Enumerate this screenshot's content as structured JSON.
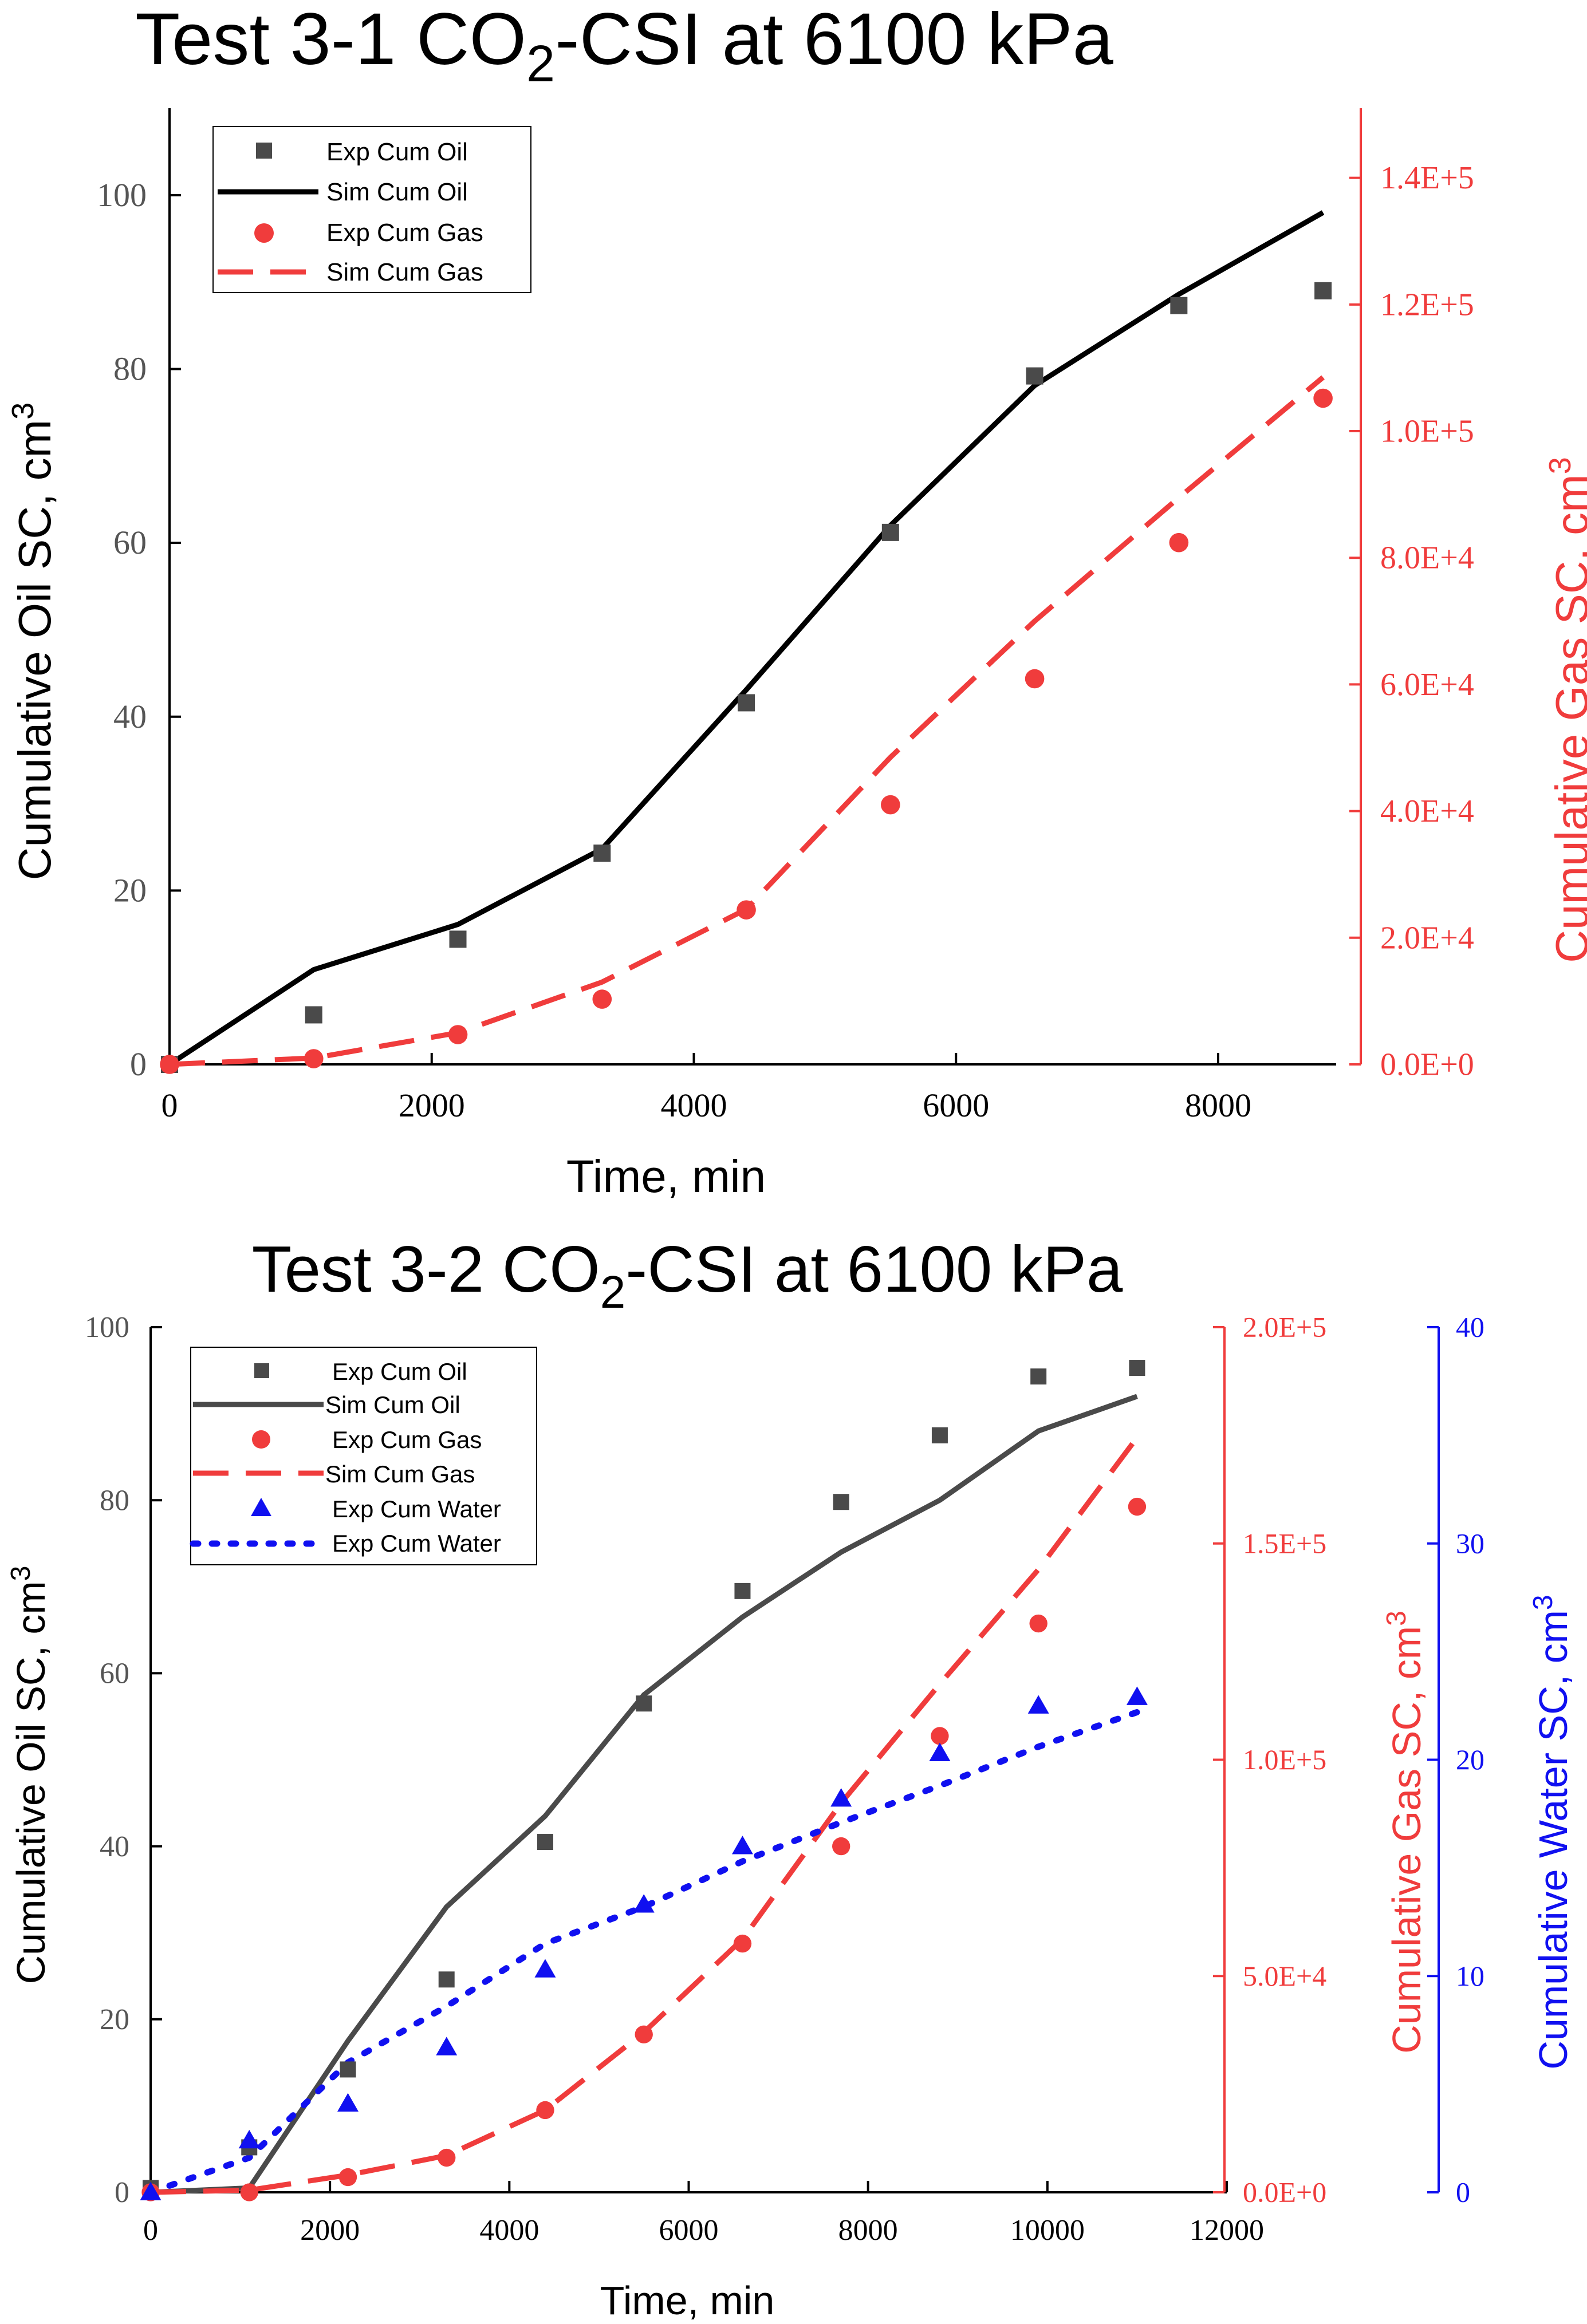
{
  "chart_data": [
    {
      "type": "line",
      "title_main": "Test 3-1 CO",
      "title_sub": "2",
      "title_rest": "-CSI at 6100 kPa",
      "xlabel": "Time, min",
      "ylabel_left": "Cumulative Oil SC, cm",
      "ylabel_left_sup": "3",
      "ylabel_right": "Cumulative Gas SC, cm",
      "ylabel_right_sup": "3",
      "xlim": [
        0,
        8900
      ],
      "ylim_left": [
        0,
        110
      ],
      "ylim_right": [
        0,
        151000
      ],
      "x_ticks": [
        0,
        2000,
        4000,
        6000,
        8000
      ],
      "x_tick_labels": [
        "0",
        "2000",
        "4000",
        "6000",
        "8000"
      ],
      "y_left_ticks": [
        0,
        20,
        40,
        60,
        80,
        100
      ],
      "y_left_tick_labels": [
        "0",
        "20",
        "40",
        "60",
        "80",
        "100"
      ],
      "y_right_ticks": [
        0,
        20000,
        40000,
        60000,
        80000,
        100000,
        120000,
        140000
      ],
      "y_right_tick_labels": [
        "0.0E+0",
        "2.0E+4",
        "4.0E+4",
        "6.0E+4",
        "8.0E+4",
        "1.0E+5",
        "1.2E+5",
        "1.4E+5"
      ],
      "legend_position": "top-left",
      "series": [
        {
          "name": "Exp Cum Oil",
          "axis": "left",
          "kind": "marker-square",
          "color": "#4a4a4a",
          "x": [
            0,
            1100,
            2200,
            3300,
            4400,
            5500,
            6600,
            7700,
            8800
          ],
          "y": [
            0,
            5.7,
            14.4,
            24.3,
            41.6,
            61.2,
            79.2,
            87.3,
            89
          ]
        },
        {
          "name": "Sim Cum Oil",
          "axis": "left",
          "kind": "line-solid",
          "color": "#000000",
          "x": [
            0,
            1100,
            2200,
            3300,
            4400,
            5500,
            6600,
            7700,
            8800
          ],
          "y": [
            0,
            10.9,
            16.1,
            24.8,
            43.1,
            62,
            78.1,
            88.6,
            98
          ]
        },
        {
          "name": "Exp Cum Gas",
          "axis": "right",
          "kind": "marker-circle",
          "color": "#f03c3c",
          "x": [
            0,
            1100,
            2200,
            3300,
            4400,
            5500,
            6600,
            7700,
            8800
          ],
          "y": [
            0,
            900,
            4700,
            10300,
            24400,
            41000,
            60900,
            82400,
            105200
          ]
        },
        {
          "name": "Sim Cum Gas",
          "axis": "right",
          "kind": "line-dash",
          "color": "#f03c3c",
          "x": [
            0,
            1100,
            2200,
            3300,
            4400,
            5500,
            6600,
            7700,
            8800
          ],
          "y": [
            0,
            1000,
            5000,
            13000,
            24500,
            48500,
            70000,
            89500,
            108500
          ]
        }
      ]
    },
    {
      "type": "line",
      "title_main": "Test 3-2 CO",
      "title_sub": "2",
      "title_rest": "-CSI at 6100 kPa",
      "xlabel": "Time, min",
      "ylabel_left": "Cumulative Oil SC, cm",
      "ylabel_left_sup": "3",
      "ylabel_right": "Cumulative Gas SC, cm",
      "ylabel_right_sup": "3",
      "ylabel_right2": "Cumulative Water SC, cm",
      "ylabel_right2_sup": "3",
      "xlim": [
        0,
        12000
      ],
      "ylim_left": [
        0,
        100
      ],
      "ylim_right": [
        0,
        200000
      ],
      "ylim_right2": [
        0,
        40
      ],
      "x_ticks": [
        0,
        2000,
        4000,
        6000,
        8000,
        10000,
        12000
      ],
      "x_tick_labels": [
        "0",
        "2000",
        "4000",
        "6000",
        "8000",
        "10000",
        "12000"
      ],
      "y_left_ticks": [
        0,
        20,
        40,
        60,
        80,
        100
      ],
      "y_left_tick_labels": [
        "0",
        "20",
        "40",
        "60",
        "80",
        "100"
      ],
      "y_right_ticks": [
        0,
        50000,
        100000,
        150000,
        200000
      ],
      "y_right_tick_labels": [
        "0.0E+0",
        "5.0E+4",
        "1.0E+5",
        "1.5E+5",
        "2.0E+5"
      ],
      "y_right2_ticks": [
        0,
        10,
        20,
        30,
        40
      ],
      "y_right2_tick_labels": [
        "0",
        "10",
        "20",
        "30",
        "40"
      ],
      "legend_position": "top-left",
      "series": [
        {
          "name": "Exp Cum Oil",
          "axis": "left",
          "kind": "marker-square",
          "color": "#4a4a4a",
          "x": [
            0,
            1100,
            2200,
            3300,
            4400,
            5500,
            6600,
            7700,
            8800,
            9900,
            11000
          ],
          "y": [
            0.5,
            5.2,
            14.2,
            24.6,
            40.5,
            56.5,
            69.5,
            79.8,
            87.5,
            94.3,
            95.3
          ]
        },
        {
          "name": "Sim Cum Oil",
          "axis": "left",
          "kind": "line-solid",
          "color": "#4a4a4a",
          "x": [
            0,
            1100,
            2200,
            3300,
            4400,
            5500,
            6600,
            7700,
            8800,
            9900,
            11000
          ],
          "y": [
            0,
            0.5,
            17.5,
            33,
            43.5,
            57.5,
            66.5,
            74,
            80,
            88,
            92
          ]
        },
        {
          "name": "Exp Cum Gas",
          "axis": "right",
          "kind": "marker-circle",
          "color": "#f03c3c",
          "x": [
            0,
            1100,
            2200,
            3300,
            4400,
            5500,
            6600,
            7700,
            8800,
            9900,
            11000
          ],
          "y": [
            0,
            0,
            3500,
            8000,
            19000,
            36500,
            57500,
            80000,
            105500,
            131500,
            158500
          ]
        },
        {
          "name": "Sim Cum Gas",
          "axis": "right",
          "kind": "line-dash",
          "color": "#f03c3c",
          "x": [
            0,
            1100,
            2200,
            3300,
            4400,
            5500,
            6600,
            7700,
            8800,
            9900,
            11000
          ],
          "y": [
            0,
            500,
            4000,
            8500,
            19000,
            37000,
            58500,
            90000,
            117500,
            144000,
            174500
          ]
        },
        {
          "name": "Exp Cum Water",
          "axis": "right2",
          "kind": "marker-triangle",
          "color": "#1010f0",
          "x": [
            0,
            1100,
            2200,
            3300,
            4400,
            5500,
            6600,
            7700,
            8800,
            9900,
            11000
          ],
          "y": [
            0,
            2.4,
            4.1,
            6.7,
            10.3,
            13.3,
            16,
            18.2,
            20.3,
            22.5,
            22.9
          ]
        },
        {
          "name": "Exp Cum Water",
          "axis": "right2",
          "kind": "line-dot",
          "color": "#1010f0",
          "x": [
            0,
            1100,
            2200,
            3300,
            4400,
            5500,
            6600,
            7700,
            8800,
            9900,
            11000
          ],
          "y": [
            0,
            1.6,
            6,
            8.6,
            11.5,
            13.2,
            15.3,
            17.1,
            18.8,
            20.6,
            22.2
          ]
        }
      ]
    }
  ]
}
